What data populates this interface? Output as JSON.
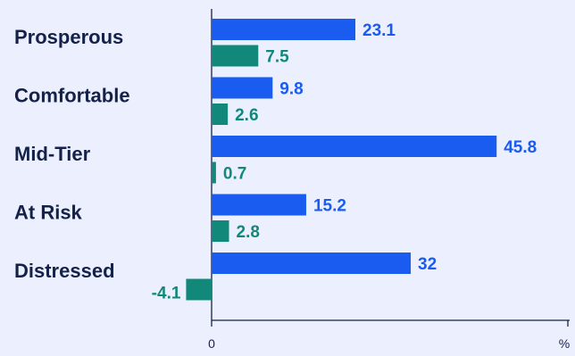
{
  "chart_data": {
    "type": "bar",
    "orientation": "horizontal",
    "categories": [
      "Prosperous",
      "Comfortable",
      "Mid-Tier",
      "At Risk",
      "Distressed"
    ],
    "series": [
      {
        "values": [
          23.1,
          9.8,
          45.8,
          15.2,
          32
        ],
        "color": "#1A5BF0"
      },
      {
        "values": [
          7.5,
          2.6,
          0.7,
          2.8,
          -4.1
        ],
        "color": "#12887A"
      }
    ],
    "x_ticks": [
      "0",
      "%"
    ],
    "xlim": [
      -4.4,
      57.4
    ],
    "grid": false,
    "legend": "none"
  },
  "colors": {
    "background": "#ECEFFE",
    "axis": "#14224A",
    "category_text": "#14224A"
  }
}
